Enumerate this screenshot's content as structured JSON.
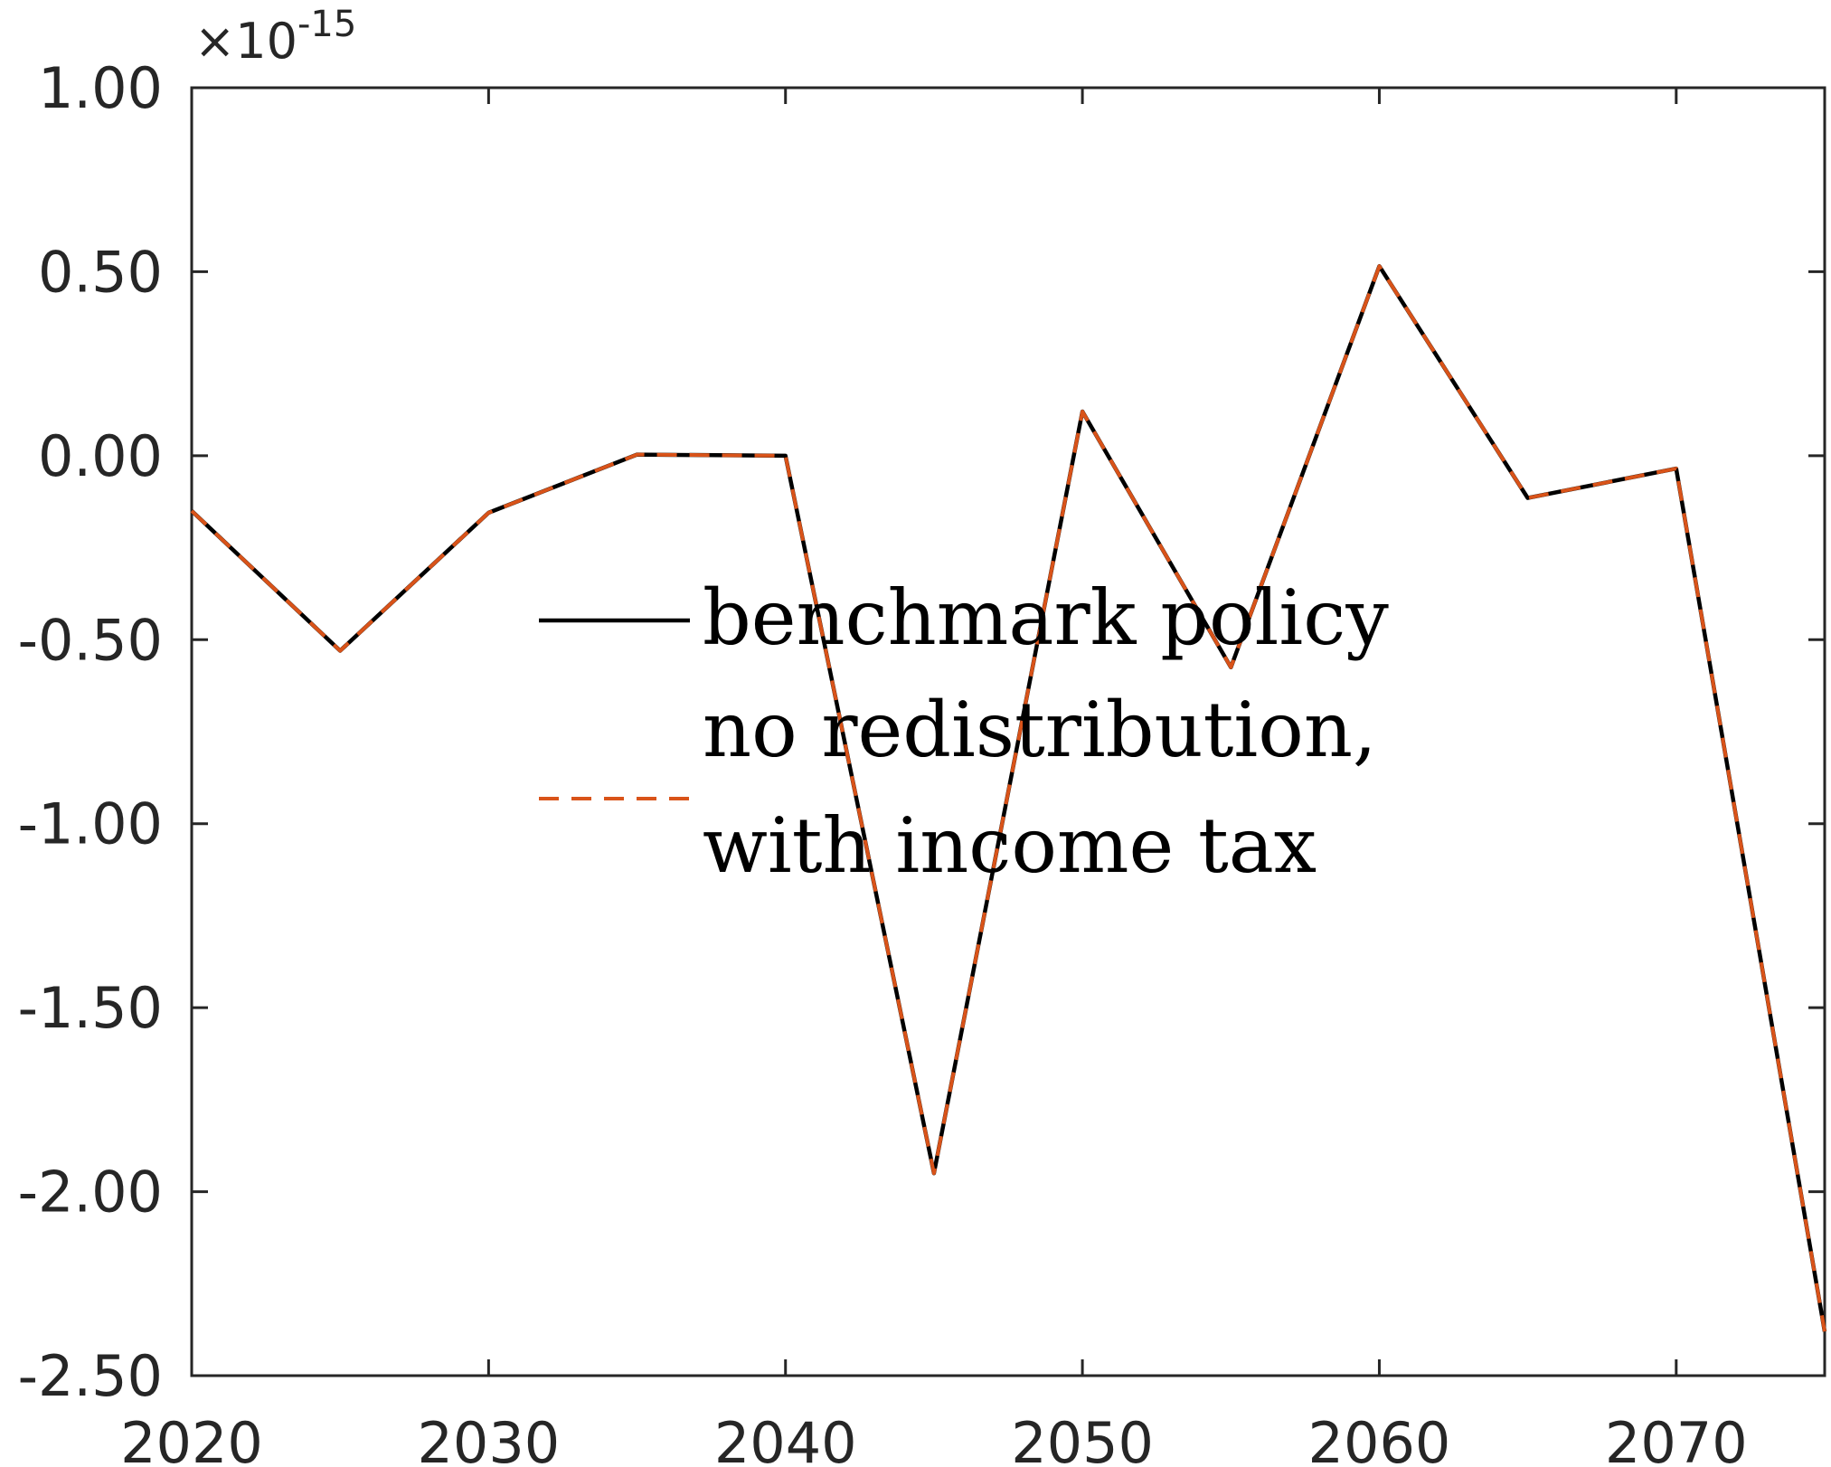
{
  "chart_data": {
    "type": "line",
    "title": "",
    "xlabel": "",
    "ylabel": "",
    "y_multiplier": "×10",
    "y_exponent": "-15",
    "xlim": [
      2020,
      2075
    ],
    "ylim": [
      -2.5,
      1.0
    ],
    "x_ticks": [
      2020,
      2030,
      2040,
      2050,
      2060,
      2070
    ],
    "x_tick_labels": [
      "2020",
      "2030",
      "2040",
      "2050",
      "2060",
      "2070"
    ],
    "y_ticks": [
      1.0,
      0.5,
      0.0,
      -0.5,
      -1.0,
      -1.5,
      -2.0,
      -2.5
    ],
    "y_tick_labels": [
      "1.00",
      "0.50",
      "0.00",
      "-0.50",
      "-1.00",
      "-1.50",
      "-2.00",
      "-2.50"
    ],
    "grid": false,
    "legend_position": "center",
    "x": [
      2020,
      2025,
      2030,
      2035,
      2040,
      2045,
      2050,
      2055,
      2060,
      2065,
      2070,
      2075
    ],
    "series": [
      {
        "name": "benchmark policy",
        "color": "#000000",
        "style": "solid",
        "values": [
          -0.15,
          -0.53,
          -0.155,
          0.003,
          0.0,
          -1.95,
          0.12,
          -0.575,
          0.515,
          -0.115,
          -0.035,
          -2.38
        ]
      },
      {
        "name": "no redistribution, with income tax",
        "name_lines": [
          "no redistribution,",
          "with income tax"
        ],
        "color": "#D95319",
        "style": "dashed",
        "values": [
          -0.15,
          -0.53,
          -0.155,
          0.003,
          0.0,
          -1.95,
          0.12,
          -0.575,
          0.515,
          -0.115,
          -0.035,
          -2.38
        ]
      }
    ]
  }
}
